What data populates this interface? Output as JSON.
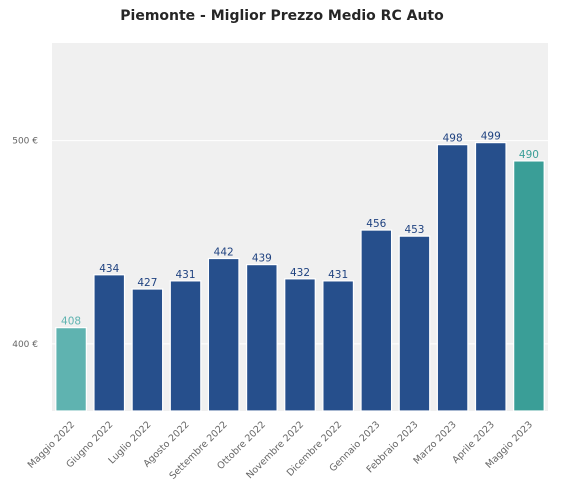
{
  "chart_data": {
    "type": "bar",
    "title": "Piemonte - Miglior Prezzo Medio RC Auto",
    "xlabel": "",
    "ylabel": "",
    "categories": [
      "Maggio 2022",
      "Giugno 2022",
      "Luglio 2022",
      "Agosto 2022",
      "Settembre 2022",
      "Ottobre 2022",
      "Novembre 2022",
      "Dicembre 2022",
      "Gennaio 2023",
      "Febbraio 2023",
      "Marzo 2023",
      "Aprile 2023",
      "Maggio 2023"
    ],
    "values": [
      408,
      434,
      427,
      431,
      442,
      439,
      432,
      431,
      456,
      453,
      498,
      499,
      490
    ],
    "data_labels": [
      "408",
      "434",
      "427",
      "431",
      "442",
      "439",
      "432",
      "431",
      "456",
      "453",
      "498",
      "499",
      "490"
    ],
    "ylim": [
      367,
      548
    ],
    "yticks": [
      400,
      500
    ],
    "ytick_labels": [
      "400 €",
      "500 €"
    ],
    "grid": true,
    "colors": {
      "default": "#264f8c",
      "first": "#5fb3b0",
      "last": "#3a9e97",
      "first_label": "#5fb3b0",
      "last_label": "#3a9e97",
      "default_label": "#1f4280",
      "plot_bg": "#f0f0f0",
      "grid": "#ffffff"
    }
  }
}
